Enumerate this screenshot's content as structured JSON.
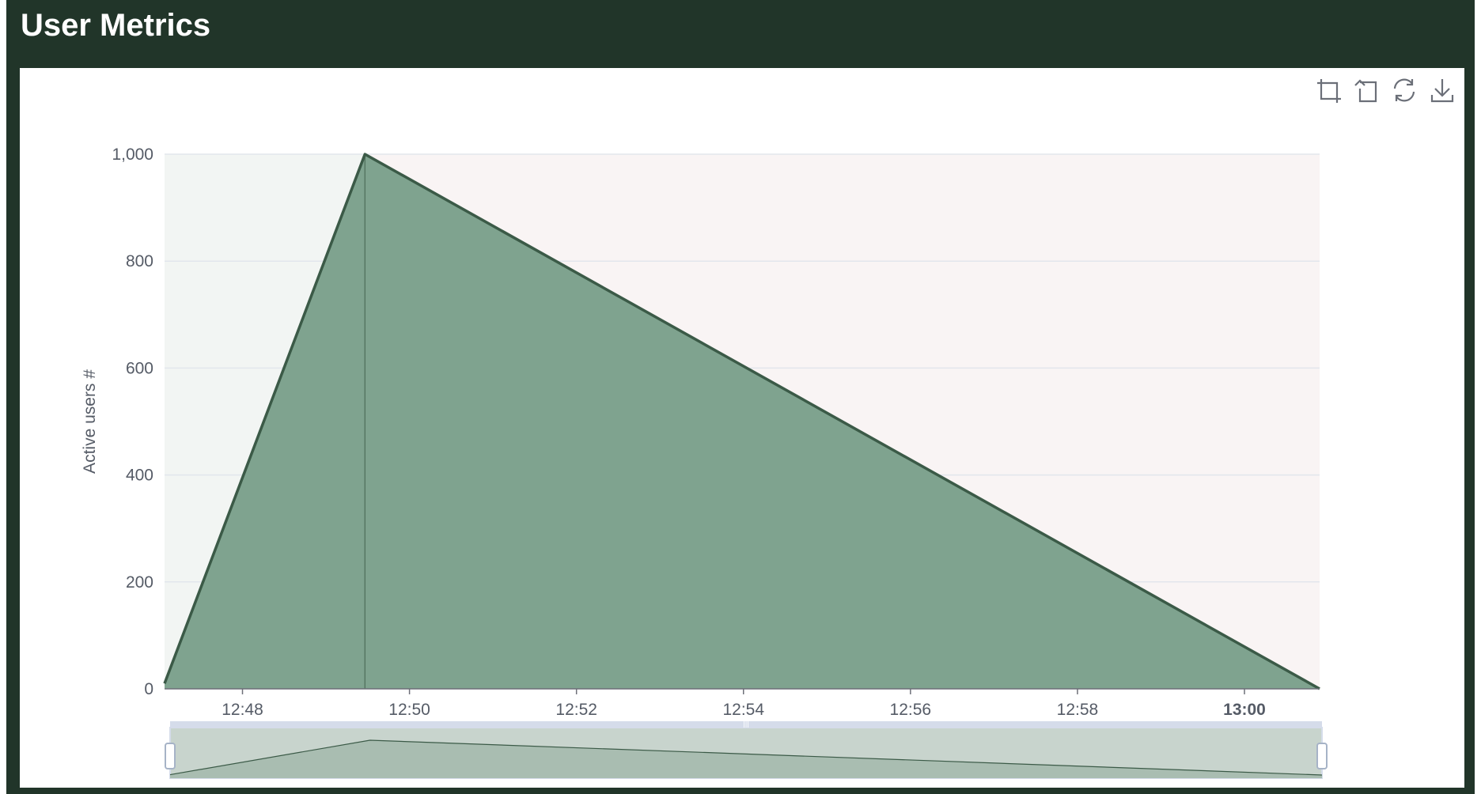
{
  "header": {
    "title": "User Metrics"
  },
  "toolbox": [
    {
      "name": "zoom-icon"
    },
    {
      "name": "zoom-reset-icon"
    },
    {
      "name": "restore-icon"
    },
    {
      "name": "download-icon"
    }
  ],
  "colors": {
    "header_bg": "#213529",
    "area_fill": "#7fa38f",
    "line": "#3b5a47",
    "band_left": "#f2f5f3",
    "band_right": "#f9f4f4",
    "grid": "#e2e6ec",
    "datazoom_fill": "#c8d4cd",
    "datazoom_border": "#d5dcea"
  },
  "chart_data": {
    "type": "area",
    "ylabel": "Active users #",
    "xlabel": "",
    "ylim": [
      0,
      1000
    ],
    "yticks": [
      "0",
      "200",
      "400",
      "600",
      "800",
      "1,000"
    ],
    "ytick_values": [
      0,
      200,
      400,
      600,
      800,
      1000
    ],
    "xlim": [
      "12:47:04",
      "13:00:54"
    ],
    "xticks": [
      "12:48",
      "12:50",
      "12:52",
      "12:54",
      "12:56",
      "12:58",
      "13:00"
    ],
    "xtick_values": [
      "12:48:00",
      "12:50:00",
      "12:52:00",
      "12:54:00",
      "12:56:00",
      "12:58:00",
      "13:00:00"
    ],
    "series": [
      {
        "points": [
          [
            "12:47:04",
            10
          ],
          [
            "12:49:28",
            1000
          ],
          [
            "13:00:54",
            0
          ]
        ]
      }
    ],
    "mark_line_x": "12:49:28",
    "mark_area_left": [
      "12:47:04",
      "12:49:28"
    ],
    "mark_area_right": [
      "12:49:28",
      "13:00:54"
    ],
    "data_zoom": {
      "start": 0,
      "end": 100
    },
    "grid": true
  }
}
